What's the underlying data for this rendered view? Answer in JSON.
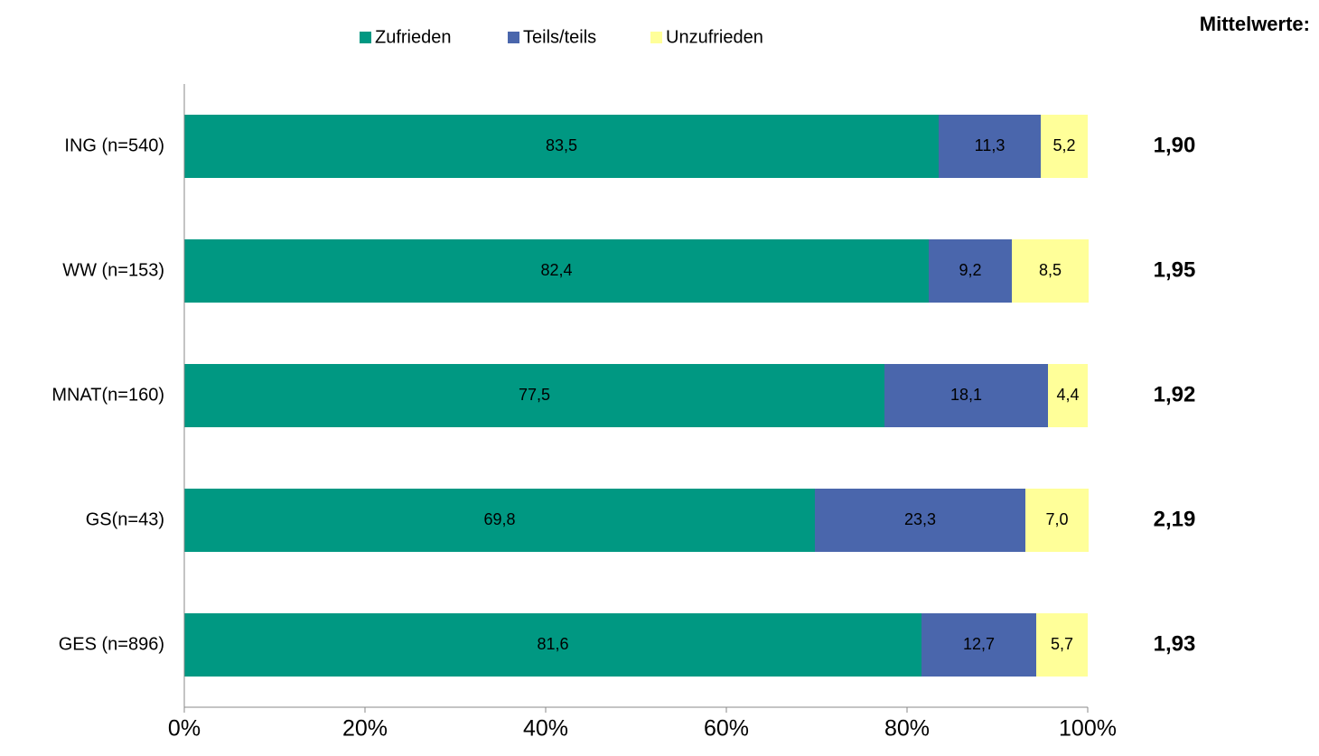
{
  "chart_data": {
    "type": "stacked-barh",
    "categories": [
      "ING (n=540)",
      "WW (n=153)",
      "MNAT(n=160)",
      "GS(n=43)",
      "GES (n=896)"
    ],
    "series": [
      {
        "name": "Zufrieden",
        "color": "#009882",
        "values": [
          83.5,
          82.4,
          77.5,
          69.8,
          81.6
        ],
        "value_labels": [
          "83,5",
          "82,4",
          "77,5",
          "69,8",
          "81,6"
        ]
      },
      {
        "name": "Teils/teils",
        "color": "#4a66ac",
        "values": [
          11.3,
          9.2,
          18.1,
          23.3,
          12.7
        ],
        "value_labels": [
          "11,3",
          "9,2",
          "18,1",
          "23,3",
          "12,7"
        ]
      },
      {
        "name": "Unzufrieden",
        "color": "#ffff99",
        "values": [
          5.2,
          8.5,
          4.4,
          7.0,
          5.7
        ],
        "value_labels": [
          "5,2",
          "8,5",
          "4,4",
          "7,0",
          "5,7"
        ]
      }
    ],
    "xlim": [
      0,
      100
    ],
    "xticks": [
      {
        "value": 0,
        "label": "0%"
      },
      {
        "value": 20,
        "label": "20%"
      },
      {
        "value": 40,
        "label": "40%"
      },
      {
        "value": 60,
        "label": "60%"
      },
      {
        "value": 80,
        "label": "80%"
      },
      {
        "value": 100,
        "label": "100%"
      }
    ],
    "legend": "top",
    "annotation": {
      "title": "Mittelwerte:",
      "values": [
        1.9,
        1.95,
        1.92,
        2.19,
        1.93
      ],
      "value_labels": [
        "1,90",
        "1,95",
        "1,92",
        "2,19",
        "1,93"
      ]
    }
  }
}
